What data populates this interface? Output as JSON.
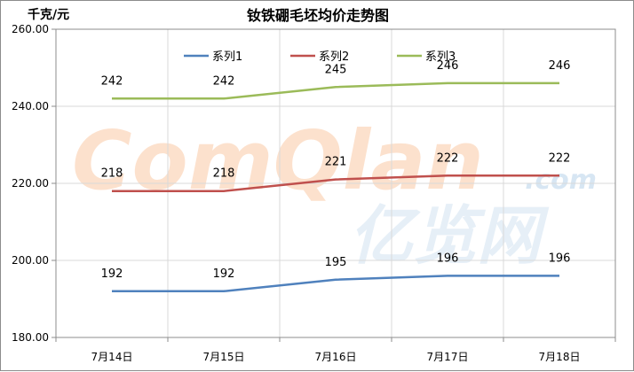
{
  "chart_data": {
    "type": "line",
    "title": "钕铁硼毛坯均价走势图",
    "ylabel": "千克/元",
    "xlabel": "",
    "categories": [
      "7月14日",
      "7月15日",
      "7月16日",
      "7月17日",
      "7月18日"
    ],
    "ylim": [
      180,
      260
    ],
    "yticks": [
      "180.00",
      "200.00",
      "220.00",
      "240.00",
      "260.00"
    ],
    "grid": true,
    "legend_position": "top",
    "series": [
      {
        "name": "系列1",
        "values": [
          192,
          192,
          195,
          196,
          196
        ],
        "color": "#4f81bd"
      },
      {
        "name": "系列2",
        "values": [
          218,
          218,
          221,
          222,
          222
        ],
        "color": "#c0504d"
      },
      {
        "name": "系列3",
        "values": [
          242,
          242,
          245,
          246,
          246
        ],
        "color": "#9bbb59"
      }
    ]
  },
  "watermark": {
    "brand": "ComQlan",
    "domain": ".com",
    "cn": "亿览网"
  }
}
